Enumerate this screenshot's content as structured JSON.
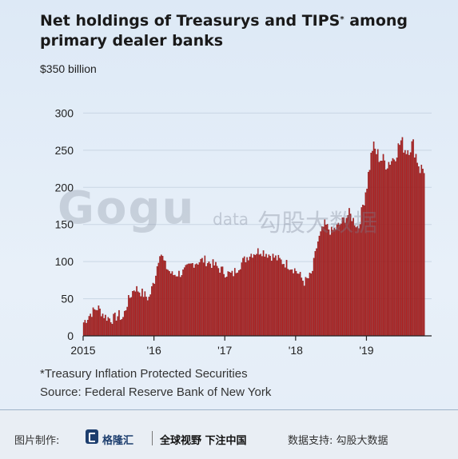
{
  "chart_data": {
    "type": "bar",
    "title_line1": "Net holdings of Treasurys and TIPS",
    "title_sup": "*",
    "title_line2": "among",
    "title_line3": "primary dealer banks",
    "unit_label": "$350 billion",
    "ylim": [
      0,
      350
    ],
    "yticks": [
      0,
      50,
      100,
      150,
      200,
      250,
      300
    ],
    "xticks": [
      {
        "label": "2015",
        "t": 2015.0
      },
      {
        "label": "'16",
        "t": 2016.0
      },
      {
        "label": "'17",
        "t": 2017.0
      },
      {
        "label": "'18",
        "t": 2018.0
      },
      {
        "label": "'19",
        "t": 2019.0
      }
    ],
    "x_start": 2015.0,
    "x_end": 2019.83,
    "bar_color": "#b22222",
    "bar_edge": "#7a1414",
    "keypoints": [
      [
        2015.0,
        18
      ],
      [
        2015.1,
        30
      ],
      [
        2015.2,
        38
      ],
      [
        2015.3,
        26
      ],
      [
        2015.4,
        22
      ],
      [
        2015.5,
        28
      ],
      [
        2015.55,
        22
      ],
      [
        2015.62,
        45
      ],
      [
        2015.72,
        65
      ],
      [
        2015.82,
        58
      ],
      [
        2015.92,
        50
      ],
      [
        2016.0,
        75
      ],
      [
        2016.08,
        115
      ],
      [
        2016.15,
        95
      ],
      [
        2016.25,
        82
      ],
      [
        2016.4,
        85
      ],
      [
        2016.55,
        98
      ],
      [
        2016.7,
        102
      ],
      [
        2016.85,
        95
      ],
      [
        2017.0,
        85
      ],
      [
        2017.1,
        82
      ],
      [
        2017.2,
        95
      ],
      [
        2017.35,
        110
      ],
      [
        2017.5,
        115
      ],
      [
        2017.65,
        108
      ],
      [
        2017.8,
        100
      ],
      [
        2017.9,
        95
      ],
      [
        2018.0,
        88
      ],
      [
        2018.12,
        72
      ],
      [
        2018.22,
        82
      ],
      [
        2018.3,
        125
      ],
      [
        2018.4,
        150
      ],
      [
        2018.5,
        140
      ],
      [
        2018.62,
        150
      ],
      [
        2018.75,
        165
      ],
      [
        2018.88,
        145
      ],
      [
        2019.0,
        205
      ],
      [
        2019.08,
        255
      ],
      [
        2019.18,
        240
      ],
      [
        2019.28,
        232
      ],
      [
        2019.38,
        240
      ],
      [
        2019.48,
        262
      ],
      [
        2019.55,
        250
      ],
      [
        2019.65,
        258
      ],
      [
        2019.75,
        225
      ],
      [
        2019.83,
        225
      ]
    ]
  },
  "footnotes": {
    "line1": "*Treasury Inflation Protected Securities",
    "line2": "Source: Federal Reserve Bank of New York"
  },
  "watermark": {
    "logo": "Gogu",
    "small": "data",
    "cn": "勾股大数据"
  },
  "footer": {
    "label": "图片制作:",
    "brand": "格隆汇",
    "slogan": "全球视野 下注中国",
    "support": "数据支持: 勾股大数据"
  }
}
